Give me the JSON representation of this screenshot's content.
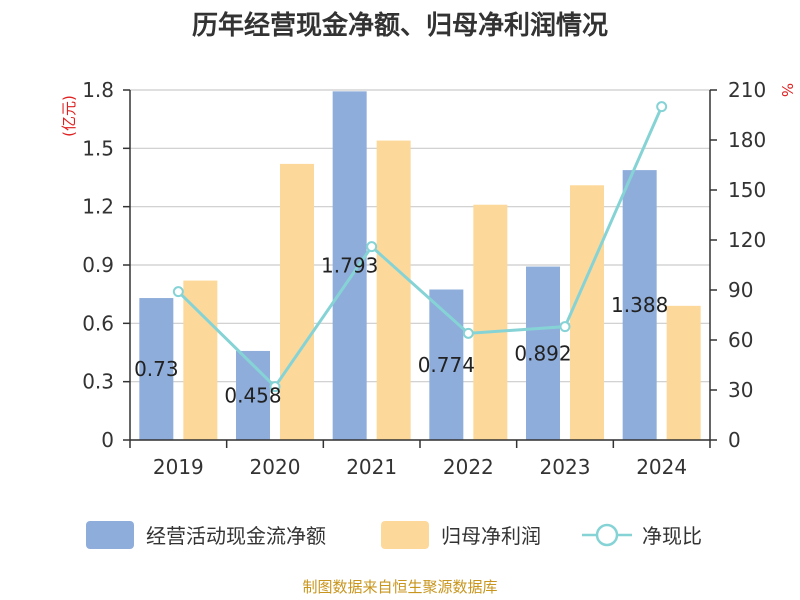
{
  "chart_data": {
    "type": "bar",
    "title": "历年经营现金净额、归母净利润情况",
    "left_unit": "(亿元)",
    "right_unit": "%",
    "categories": [
      "2019",
      "2020",
      "2021",
      "2022",
      "2023",
      "2024"
    ],
    "ylim_left": [
      0,
      1.8
    ],
    "yticks_left": [
      "0",
      "0.3",
      "0.6",
      "0.9",
      "1.2",
      "1.5",
      "1.8"
    ],
    "ylim_right": [
      0,
      210
    ],
    "yticks_right": [
      "0",
      "30",
      "60",
      "90",
      "120",
      "150",
      "180",
      "210"
    ],
    "grid": true,
    "legend_position": "bottom",
    "series": [
      {
        "name": "经营活动现金流净额",
        "kind": "bar",
        "axis": "left",
        "color": "#8eaddb",
        "values": [
          0.73,
          0.458,
          1.793,
          0.774,
          0.892,
          1.388
        ],
        "labels": [
          "0.73",
          "0.458",
          "1.793",
          "0.774",
          "0.892",
          "1.388"
        ]
      },
      {
        "name": "归母净利润",
        "kind": "bar",
        "axis": "left",
        "color": "#fdd89b",
        "values": [
          0.82,
          1.42,
          1.54,
          1.21,
          1.31,
          0.69
        ]
      },
      {
        "name": "净现比",
        "kind": "line",
        "axis": "right",
        "color": "#86d3d6",
        "values": [
          89,
          32,
          116,
          64,
          68,
          200
        ]
      }
    ],
    "source": "制图数据来自恒生聚源数据库"
  }
}
